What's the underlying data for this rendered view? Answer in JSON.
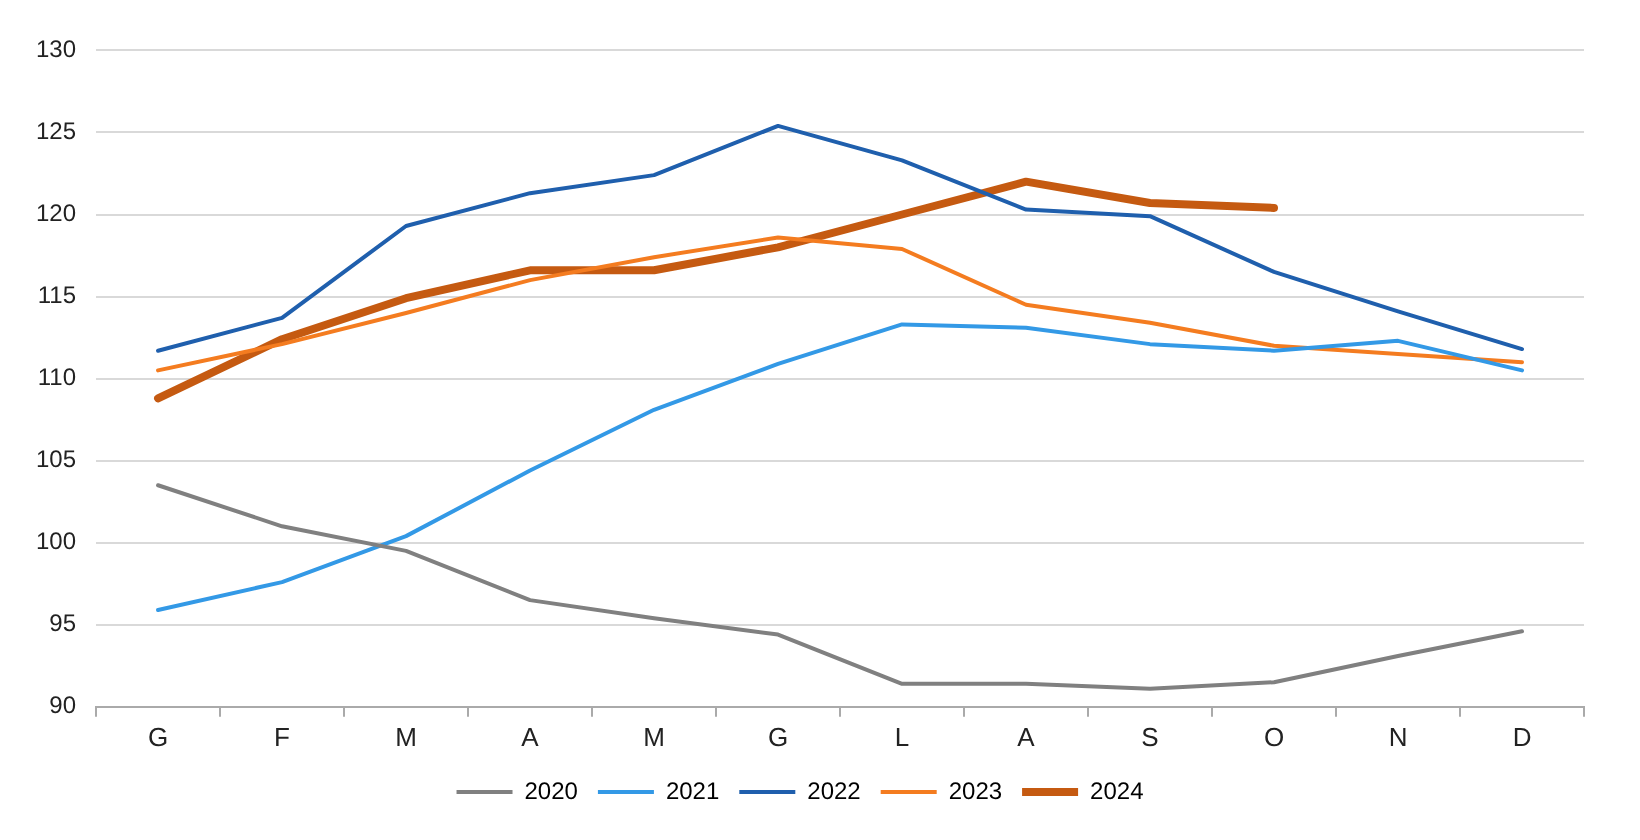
{
  "chart_data": {
    "type": "line",
    "categories": [
      "G",
      "F",
      "M",
      "A",
      "M",
      "G",
      "L",
      "A",
      "S",
      "O",
      "N",
      "D"
    ],
    "ylim": [
      90,
      130
    ],
    "yticks": [
      90,
      95,
      100,
      105,
      110,
      115,
      120,
      125,
      130
    ],
    "grid": "y",
    "legend": "bottom",
    "marker": "none",
    "line_style": "solid",
    "series": [
      {
        "name": "2020",
        "color": "#808080",
        "values": [
          103.5,
          101,
          99.5,
          96.5,
          95.4,
          94.4,
          91.4,
          91.4,
          91.1,
          91.5,
          93.1,
          94.6
        ]
      },
      {
        "name": "2021",
        "color": "#3399e6",
        "values": [
          95.9,
          97.6,
          100.4,
          104.4,
          108.1,
          110.9,
          113.3,
          113.1,
          112.1,
          111.7,
          112.3,
          110.5
        ]
      },
      {
        "name": "2022",
        "color": "#1f5fad",
        "values": [
          111.7,
          113.7,
          119.3,
          121.3,
          122.4,
          125.4,
          123.3,
          120.3,
          119.9,
          116.5,
          114.1,
          111.8
        ]
      },
      {
        "name": "2023",
        "color": "#f47c20",
        "values": [
          110.5,
          112.1,
          114.0,
          116.0,
          117.4,
          118.6,
          117.9,
          114.5,
          113.4,
          112.0,
          111.5,
          111.0
        ]
      },
      {
        "name": "2024",
        "color": "#c55a11",
        "values": [
          108.8,
          112.4,
          114.9,
          116.6,
          116.6,
          118.0,
          120.0,
          122.0,
          120.7,
          120.4,
          null,
          null
        ]
      }
    ]
  }
}
